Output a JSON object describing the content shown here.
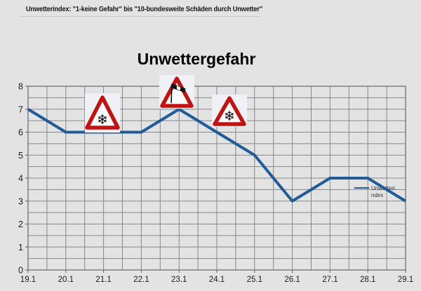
{
  "header": {
    "note": "Unwetterindex: \"1-keine Gefahr\" bis \"10-bundesweite Schäden durch Unwetter\""
  },
  "chart_data": {
    "type": "line",
    "title": "Unwettergefahr",
    "x": [
      "19.1",
      "20.1",
      "21.1",
      "22.1",
      "23.1",
      "24.1",
      "25.1",
      "26.1",
      "27.1",
      "28.1",
      "29.1"
    ],
    "series": [
      {
        "name": "Unwetterindex",
        "values": [
          7,
          6,
          6,
          6,
          7,
          6,
          5,
          3,
          4,
          4,
          3
        ],
        "color": "#1f5c99"
      }
    ],
    "ylim": [
      0,
      8
    ],
    "y_major_step": 1,
    "y_minor_step": 0.5,
    "x_minor_divisions": 2,
    "grid": true,
    "legend": {
      "position": "inside-right",
      "label_lines": [
        "Unwetteri",
        "ndex"
      ]
    },
    "annotations": [
      {
        "type": "warning-sign",
        "icon": "snowflake-warning-sign",
        "x": "21.1"
      },
      {
        "type": "warning-sign",
        "icon": "crosswind-warning-sign",
        "x": "23.1"
      },
      {
        "type": "warning-sign",
        "icon": "snowflake-warning-sign",
        "x": "24.1"
      }
    ]
  },
  "icons": {
    "snowflake_glyph": "❄"
  },
  "colors": {
    "background": "#e3e3e3",
    "grid": "#878787",
    "frame": "#6e6e78",
    "text": "#1c1c1c",
    "line": "#1f5c99",
    "sign_red": "#c41212",
    "sign_box": "#eff1f5",
    "legend_text": "#333333"
  }
}
